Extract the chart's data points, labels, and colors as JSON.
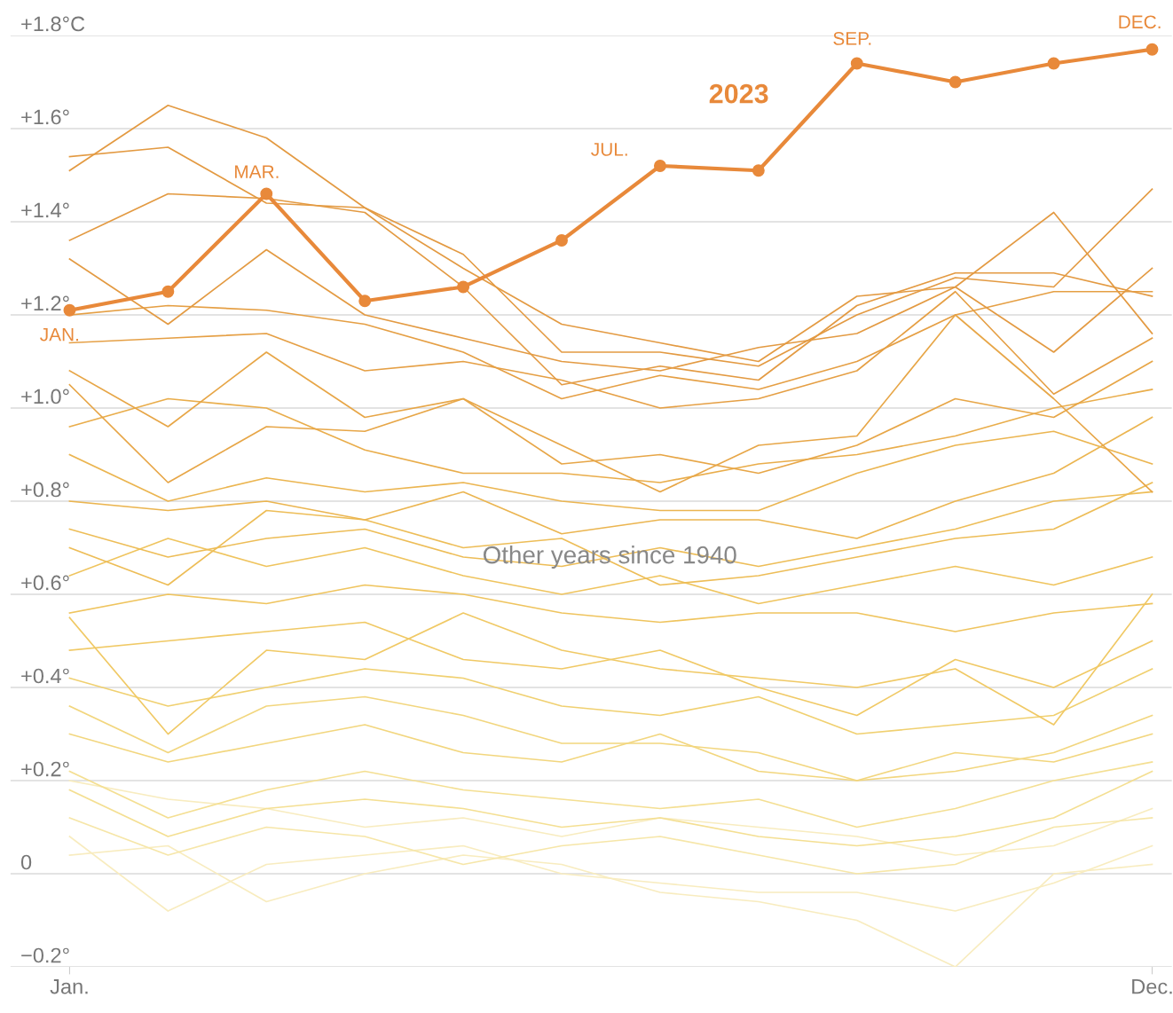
{
  "chart_data": {
    "type": "line",
    "categories": [
      "Jan.",
      null,
      null,
      null,
      null,
      null,
      null,
      null,
      null,
      null,
      null,
      "Dec."
    ],
    "ylim": [
      -0.2,
      1.8
    ],
    "yticks": [
      {
        "value": -0.2,
        "label": "−0.2°"
      },
      {
        "value": 0,
        "label": "0"
      },
      {
        "value": 0.2,
        "label": "+0.2°"
      },
      {
        "value": 0.4,
        "label": "+0.4°"
      },
      {
        "value": 0.6,
        "label": "+0.6°"
      },
      {
        "value": 0.8,
        "label": "+0.8°"
      },
      {
        "value": 1.0,
        "label": "+1.0°"
      },
      {
        "value": 1.2,
        "label": "+1.2°"
      },
      {
        "value": 1.4,
        "label": "+1.4°"
      },
      {
        "value": 1.6,
        "label": "+1.6°"
      },
      {
        "value": 1.8,
        "label": "+1.8°C"
      }
    ],
    "grid": "y",
    "legend": false,
    "series": [
      {
        "color": "#f8ecbf",
        "marker": "none",
        "values": [
          0.2,
          0.16,
          0.14,
          0.1,
          0.12,
          0.08,
          0.12,
          0.1,
          0.08,
          0.04,
          0.06,
          0.14
        ]
      },
      {
        "color": "#f8ecbf",
        "marker": "none",
        "values": [
          0.04,
          0.06,
          -0.06,
          0.0,
          0.04,
          0.02,
          -0.04,
          -0.06,
          -0.1,
          -0.2,
          0.0,
          0.02
        ]
      },
      {
        "color": "#f8ecbf",
        "marker": "none",
        "values": [
          0.08,
          -0.08,
          0.02,
          0.04,
          0.06,
          0.0,
          -0.02,
          -0.04,
          -0.04,
          -0.08,
          -0.02,
          0.06
        ]
      },
      {
        "color": "#f6e6a8",
        "marker": "none",
        "values": [
          0.12,
          0.04,
          0.1,
          0.08,
          0.02,
          0.06,
          0.08,
          0.04,
          0.0,
          0.02,
          0.1,
          0.12
        ]
      },
      {
        "color": "#f4df92",
        "marker": "none",
        "values": [
          0.18,
          0.08,
          0.14,
          0.16,
          0.14,
          0.1,
          0.12,
          0.08,
          0.06,
          0.08,
          0.12,
          0.22
        ]
      },
      {
        "color": "#f4df92",
        "marker": "none",
        "values": [
          0.22,
          0.12,
          0.18,
          0.22,
          0.18,
          0.16,
          0.14,
          0.16,
          0.1,
          0.14,
          0.2,
          0.24
        ]
      },
      {
        "color": "#f2d67e",
        "marker": "none",
        "values": [
          0.3,
          0.24,
          0.28,
          0.32,
          0.26,
          0.24,
          0.3,
          0.22,
          0.2,
          0.26,
          0.24,
          0.3
        ]
      },
      {
        "color": "#f2d67e",
        "marker": "none",
        "values": [
          0.36,
          0.26,
          0.36,
          0.38,
          0.34,
          0.28,
          0.28,
          0.26,
          0.2,
          0.22,
          0.26,
          0.34
        ]
      },
      {
        "color": "#f0d070",
        "marker": "none",
        "values": [
          0.42,
          0.36,
          0.4,
          0.44,
          0.42,
          0.36,
          0.34,
          0.38,
          0.3,
          0.32,
          0.34,
          0.44
        ]
      },
      {
        "color": "#f0c965",
        "marker": "none",
        "values": [
          0.48,
          0.5,
          0.52,
          0.54,
          0.46,
          0.44,
          0.48,
          0.4,
          0.34,
          0.46,
          0.4,
          0.5
        ]
      },
      {
        "color": "#f0c965",
        "marker": "none",
        "values": [
          0.55,
          0.3,
          0.48,
          0.46,
          0.56,
          0.48,
          0.44,
          0.42,
          0.4,
          0.44,
          0.32,
          0.6
        ]
      },
      {
        "color": "#efc45e",
        "marker": "none",
        "values": [
          0.56,
          0.6,
          0.58,
          0.62,
          0.6,
          0.56,
          0.54,
          0.56,
          0.56,
          0.52,
          0.56,
          0.58
        ]
      },
      {
        "color": "#efc45e",
        "marker": "none",
        "values": [
          0.64,
          0.72,
          0.66,
          0.7,
          0.64,
          0.6,
          0.64,
          0.58,
          0.62,
          0.66,
          0.62,
          0.68
        ]
      },
      {
        "color": "#edbd57",
        "marker": "none",
        "values": [
          0.7,
          0.62,
          0.78,
          0.76,
          0.7,
          0.72,
          0.62,
          0.64,
          0.68,
          0.72,
          0.74,
          0.84
        ]
      },
      {
        "color": "#edbd57",
        "marker": "none",
        "values": [
          0.74,
          0.68,
          0.72,
          0.74,
          0.68,
          0.66,
          0.7,
          0.66,
          0.7,
          0.74,
          0.8,
          0.82
        ]
      },
      {
        "color": "#ebb550",
        "marker": "none",
        "values": [
          0.8,
          0.78,
          0.8,
          0.76,
          0.82,
          0.73,
          0.76,
          0.76,
          0.72,
          0.8,
          0.86,
          0.98
        ]
      },
      {
        "color": "#ebb550",
        "marker": "none",
        "values": [
          0.9,
          0.8,
          0.85,
          0.82,
          0.84,
          0.8,
          0.78,
          0.78,
          0.86,
          0.92,
          0.95,
          0.88
        ]
      },
      {
        "color": "#e9ad4b",
        "marker": "none",
        "values": [
          0.96,
          1.02,
          1.0,
          0.91,
          0.86,
          0.86,
          0.84,
          0.88,
          0.9,
          0.94,
          1.0,
          1.04
        ]
      },
      {
        "color": "#e7a647",
        "marker": "none",
        "values": [
          1.05,
          0.84,
          0.96,
          0.95,
          1.02,
          0.92,
          0.82,
          0.92,
          0.94,
          1.2,
          1.02,
          0.82
        ]
      },
      {
        "color": "#e7a647",
        "marker": "none",
        "values": [
          1.08,
          0.96,
          1.12,
          0.98,
          1.02,
          0.88,
          0.9,
          0.86,
          0.92,
          1.02,
          0.98,
          1.1
        ]
      },
      {
        "color": "#e59f44",
        "marker": "none",
        "values": [
          1.14,
          1.15,
          1.16,
          1.08,
          1.1,
          1.06,
          1.0,
          1.02,
          1.08,
          1.25,
          1.03,
          1.15
        ]
      },
      {
        "color": "#e59f44",
        "marker": "none",
        "values": [
          1.2,
          1.22,
          1.21,
          1.18,
          1.12,
          1.02,
          1.07,
          1.04,
          1.1,
          1.2,
          1.25,
          1.25
        ]
      },
      {
        "color": "#e39a42",
        "marker": "none",
        "values": [
          1.32,
          1.18,
          1.34,
          1.2,
          1.15,
          1.1,
          1.08,
          1.13,
          1.16,
          1.26,
          1.12,
          1.3
        ]
      },
      {
        "color": "#e39a42",
        "marker": "none",
        "values": [
          1.36,
          1.46,
          1.45,
          1.42,
          1.26,
          1.05,
          1.09,
          1.06,
          1.22,
          1.29,
          1.29,
          1.24
        ]
      },
      {
        "color": "#e39a42",
        "marker": "none",
        "values": [
          1.54,
          1.56,
          1.44,
          1.43,
          1.33,
          1.12,
          1.12,
          1.09,
          1.2,
          1.28,
          1.26,
          1.47
        ]
      },
      {
        "color": "#e39a42",
        "marker": "none",
        "values": [
          1.51,
          1.65,
          1.58,
          1.43,
          1.3,
          1.18,
          1.14,
          1.1,
          1.24,
          1.26,
          1.42,
          1.16
        ]
      },
      {
        "name": "2023",
        "color": "#e8893a",
        "marker": "circle",
        "values": [
          1.21,
          1.25,
          1.46,
          1.23,
          1.26,
          1.36,
          1.52,
          1.51,
          1.74,
          1.7,
          1.74,
          1.77
        ]
      }
    ],
    "annotations": [
      {
        "text": "JAN.",
        "x": "Jan.",
        "y": 1.21
      },
      "MAR.",
      "JUL.",
      "SEP.",
      {
        "text": "DEC.",
        "x": "Dec.",
        "y": 1.77
      },
      "Other years since 1940"
    ]
  }
}
